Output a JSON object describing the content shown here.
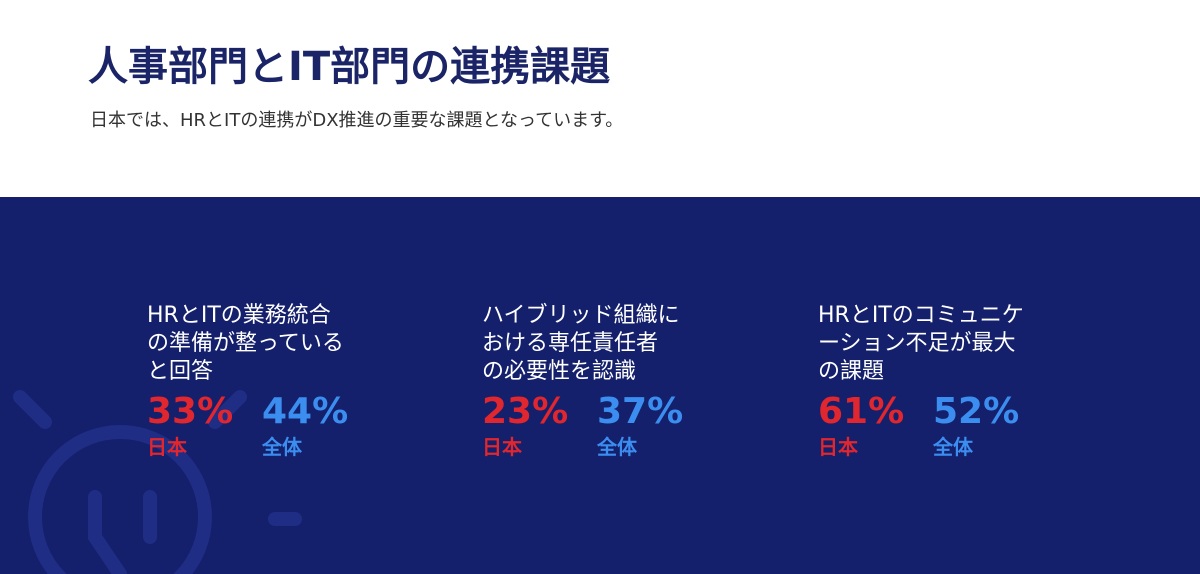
{
  "header": {
    "title": "人事部門とIT部門の連携課題",
    "subtitle": "日本では、HRとITの連携がDX推進の重要な課題となっています。"
  },
  "stats": [
    {
      "label_lines": [
        "HRとITの業務統合",
        "の準備が整っている",
        "と回答"
      ],
      "items": [
        {
          "value": "33%",
          "label": "日本"
        },
        {
          "value": "44%",
          "label": "全体"
        }
      ]
    },
    {
      "label_lines": [
        "ハイブリッド組織に",
        "おける専任責任者",
        "の必要性を認識"
      ],
      "items": [
        {
          "value": "23%",
          "label": "日本"
        },
        {
          "value": "37%",
          "label": "全体"
        }
      ]
    },
    {
      "label_lines": [
        "HRとITのコミュニケ",
        "ーション不足が最大",
        "の課題"
      ],
      "items": [
        {
          "value": "61%",
          "label": "日本"
        },
        {
          "value": "52%",
          "label": "全体"
        }
      ]
    }
  ]
}
